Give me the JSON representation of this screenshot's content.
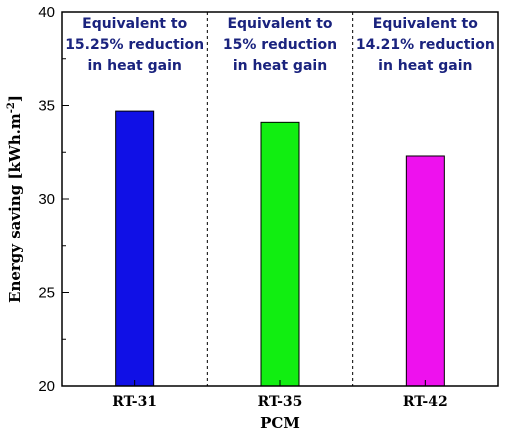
{
  "chart_data": {
    "type": "bar",
    "title": "",
    "xlabel": "PCM",
    "ylabel_main": "Energy saving [kWh.m",
    "ylabel_sup": "-2",
    "ylabel_close": "]",
    "categories": [
      "RT-31",
      "RT-35",
      "RT-42"
    ],
    "values": [
      34.7,
      34.1,
      32.3
    ],
    "colors": [
      "#1010e6",
      "#11ee11",
      "#ee11ee"
    ],
    "ylim": [
      20,
      40
    ],
    "yticks": [
      "20",
      "25",
      "30",
      "35",
      "40"
    ],
    "annotations": [
      [
        "Equivalent to",
        "15.25% reduction",
        "in heat gain"
      ],
      [
        "Equivalent to",
        "15% reduction",
        "in heat gain"
      ],
      [
        "Equivalent to",
        "14.21% reduction",
        "in heat gain"
      ]
    ],
    "grid": false,
    "separators": "dashed vertical lines between categories"
  }
}
